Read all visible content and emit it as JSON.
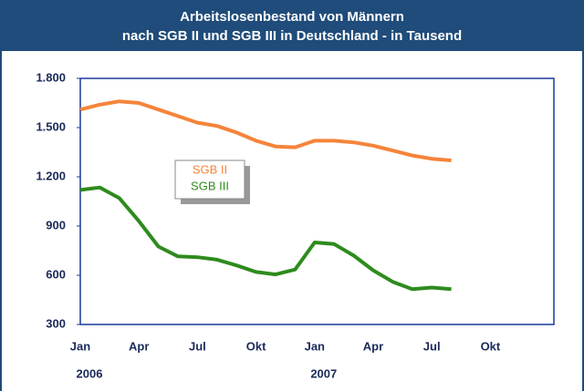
{
  "chart_data": {
    "type": "line",
    "title": [
      "Arbeitslosenbestand von Männern",
      "nach SGB II und SGB III in Deutschland - in Tausend"
    ],
    "categories": [
      "Jan",
      null,
      null,
      "Apr",
      null,
      null,
      "Jul",
      null,
      null,
      "Okt",
      null,
      null,
      "Jan",
      null,
      null,
      "Apr",
      null,
      null,
      "Jul",
      null,
      null,
      "Okt",
      null,
      null
    ],
    "years": [
      "2006",
      "2007"
    ],
    "series": [
      {
        "name": "SGB II",
        "color": "#f5843a",
        "values": [
          1610,
          1640,
          1660,
          1650,
          1610,
          1570,
          1530,
          1510,
          1470,
          1420,
          1385,
          1380,
          1420,
          1420,
          1410,
          1390,
          1360,
          1330,
          1310,
          1300,
          null,
          null,
          null,
          null
        ]
      },
      {
        "name": "SGB III",
        "color": "#2e8b1e",
        "values": [
          1120,
          1135,
          1070,
          930,
          775,
          715,
          710,
          695,
          660,
          620,
          605,
          635,
          800,
          790,
          720,
          630,
          560,
          515,
          525,
          515,
          null,
          null,
          null,
          null
        ]
      }
    ],
    "ylim": [
      300,
      1800
    ],
    "yticks": [
      300,
      600,
      900,
      {
        "value": 1200,
        "label": "1.200"
      },
      {
        "value": 1500,
        "label": "1.500"
      },
      {
        "value": 1800,
        "label": "1.800"
      }
    ]
  }
}
